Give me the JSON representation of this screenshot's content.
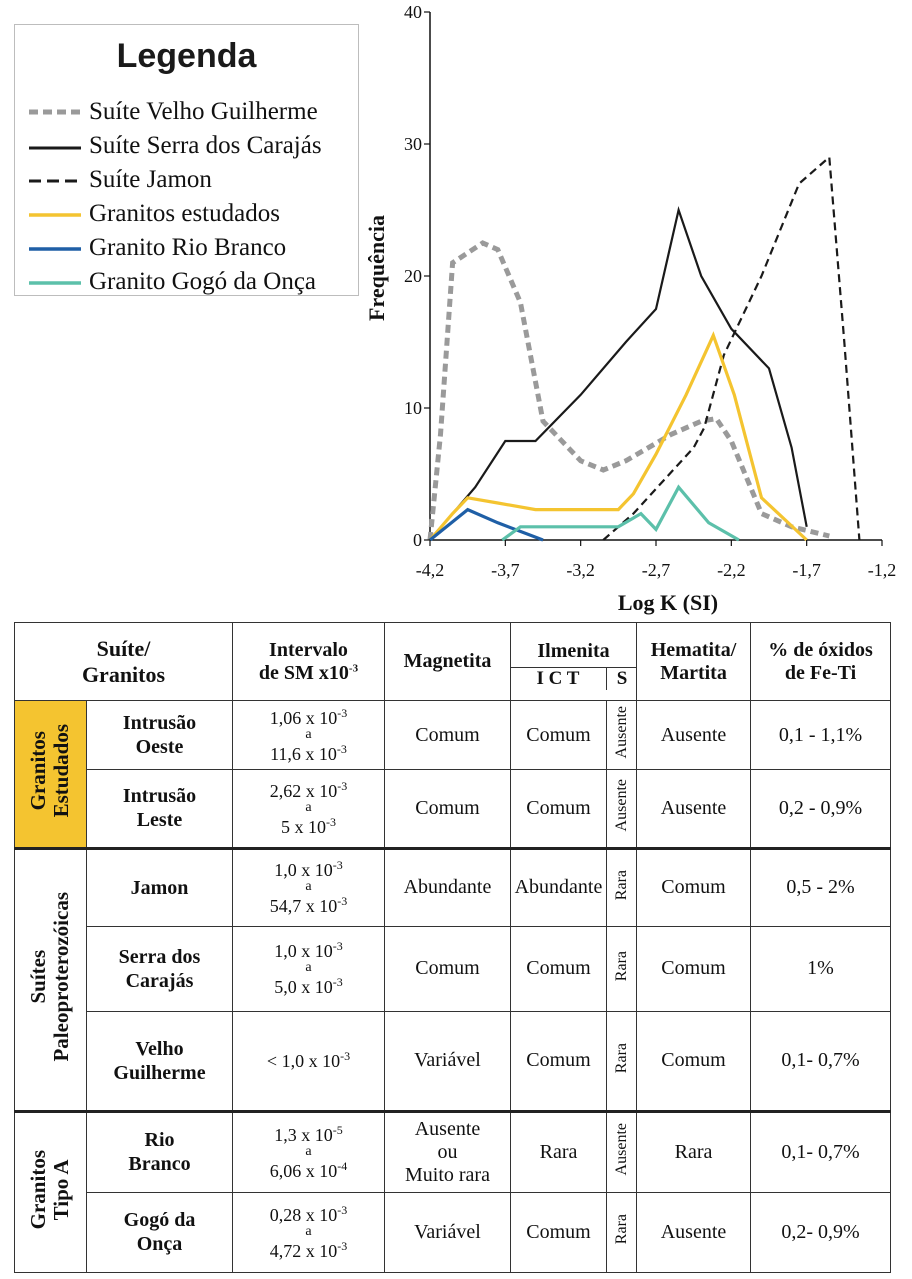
{
  "colors": {
    "velho_guilherme": "#9a9a9a",
    "serra_carajas": "#1a1a1a",
    "jamon": "#1a1a1a",
    "granitos_estudados": "#f4c430",
    "rio_branco": "#1f5fa6",
    "gogo_onca": "#5cc0aa",
    "estudados_header_bg": "#f4c430"
  },
  "legend": {
    "title": "Legenda",
    "items": [
      {
        "label": "Suíte Velho Guilherme",
        "style": "dotted-gray"
      },
      {
        "label": "Suíte Serra dos Carajás",
        "style": "solid-black"
      },
      {
        "label": "Suíte Jamon",
        "style": "dashed-black"
      },
      {
        "label": "Granitos estudados",
        "style": "solid-yellow"
      },
      {
        "label": "Granito Rio Branco",
        "style": "solid-blue"
      },
      {
        "label": "Granito Gogó da Onça",
        "style": "solid-teal"
      }
    ]
  },
  "chart_data": {
    "type": "line",
    "title": "",
    "xlabel": "Log K (SI)",
    "ylabel": "Frequência",
    "xlim": [
      -4.2,
      -1.2
    ],
    "ylim": [
      0,
      40
    ],
    "xticks": [
      "-4,2",
      "-3,7",
      "-3,2",
      "-2,7",
      "-2,2",
      "-1,7",
      "-1,2"
    ],
    "yticks": [
      "0",
      "10",
      "20",
      "30",
      "40"
    ],
    "grid": false,
    "series": [
      {
        "name": "Suíte Velho Guilherme",
        "style": "dotted-gray",
        "x": [
          -4.2,
          -4.13,
          -4.05,
          -3.85,
          -3.75,
          -3.6,
          -3.45,
          -3.2,
          -3.05,
          -2.9,
          -2.6,
          -2.4,
          -2.3,
          -2.2,
          -2.0,
          -1.8,
          -1.55
        ],
        "y": [
          0,
          8,
          21,
          22.5,
          22,
          18,
          9,
          6,
          5.3,
          6,
          8,
          9,
          9.2,
          7.5,
          2,
          1,
          0.3
        ]
      },
      {
        "name": "Suíte Serra dos Carajás",
        "style": "solid-black",
        "x": [
          -4.2,
          -3.9,
          -3.7,
          -3.5,
          -3.2,
          -2.9,
          -2.7,
          -2.55,
          -2.4,
          -2.2,
          -1.95,
          -1.8,
          -1.7
        ],
        "y": [
          0,
          4,
          7.5,
          7.5,
          11,
          15,
          17.5,
          25,
          20,
          16,
          13,
          7,
          1
        ]
      },
      {
        "name": "Suíte Jamon",
        "style": "dashed-black",
        "x": [
          -3.05,
          -2.85,
          -2.65,
          -2.45,
          -2.38,
          -2.25,
          -2.0,
          -1.75,
          -1.55,
          -1.45,
          -1.35
        ],
        "y": [
          0,
          2,
          4.5,
          7,
          8.5,
          14,
          20,
          27,
          29,
          15,
          0
        ]
      },
      {
        "name": "Granitos estudados",
        "style": "solid-yellow",
        "x": [
          -4.2,
          -4.05,
          -3.95,
          -3.75,
          -3.5,
          -3.2,
          -2.95,
          -2.85,
          -2.7,
          -2.5,
          -2.32,
          -2.18,
          -2.0,
          -1.7
        ],
        "y": [
          0,
          2,
          3.2,
          2.8,
          2.3,
          2.3,
          2.3,
          3.5,
          6.5,
          11,
          15.5,
          11,
          3.2,
          0
        ]
      },
      {
        "name": "Granito Rio Branco",
        "style": "solid-blue",
        "x": [
          -4.2,
          -3.95,
          -3.75,
          -3.45
        ],
        "y": [
          0,
          2.3,
          1.3,
          0
        ]
      },
      {
        "name": "Granito Gogó da Onça",
        "style": "solid-teal",
        "x": [
          -3.72,
          -3.6,
          -3.2,
          -2.95,
          -2.8,
          -2.7,
          -2.55,
          -2.35,
          -2.15
        ],
        "y": [
          0,
          1,
          1,
          1,
          2,
          0.8,
          4,
          1.3,
          0
        ]
      }
    ]
  },
  "table": {
    "headers": {
      "suite": "Suíte/\nGranitos",
      "intervalo": "Intervalo\nde SM x10-3",
      "magnetita": "Magnetita",
      "ilmenita": "Ilmenita",
      "ilmenita_sub_ict": "I   C   T",
      "ilmenita_sub_s": "S",
      "hematita": "Hematita/\nMartita",
      "oxidos": "% de óxidos\nde Fe-Ti"
    },
    "groups": [
      {
        "label": "Granitos\nEstudados",
        "rows": [
          {
            "name": "Intrusão\nOeste",
            "interval_from": "1,06 x 10-3",
            "interval_to": "11,6 x 10-3",
            "magnetita": "Comum",
            "ilmenita_ict": "Comum",
            "ilmenita_s": "Ausente",
            "hematita": "Ausente",
            "oxidos": "0,1 - 1,1%"
          },
          {
            "name": "Intrusão\nLeste",
            "interval_from": "2,62 x 10-3",
            "interval_to": "5 x 10-3",
            "magnetita": "Comum",
            "ilmenita_ict": "Comum",
            "ilmenita_s": "Ausente",
            "hematita": "Ausente",
            "oxidos": "0,2 - 0,9%"
          }
        ]
      },
      {
        "label": "Suítes\nPaleoproterozóicas",
        "rows": [
          {
            "name": "Jamon",
            "interval_from": "1,0 x 10-3",
            "interval_to": "54,7 x 10-3",
            "magnetita": "Abundante",
            "ilmenita_ict": "Abundante",
            "ilmenita_s": "Rara",
            "hematita": "Comum",
            "oxidos": "0,5 - 2%"
          },
          {
            "name": "Serra dos\nCarajás",
            "interval_from": "1,0 x 10-3",
            "interval_to": "5,0 x 10-3",
            "magnetita": "Comum",
            "ilmenita_ict": "Comum",
            "ilmenita_s": "Rara",
            "hematita": "Comum",
            "oxidos": "1%"
          },
          {
            "name": "Velho\nGuilherme",
            "interval_single": "< 1,0 x 10-3",
            "magnetita": "Variável",
            "ilmenita_ict": "Comum",
            "ilmenita_s": "Rara",
            "hematita": "Comum",
            "oxidos": "0,1- 0,7%"
          }
        ]
      },
      {
        "label": "Granitos\nTipo A",
        "rows": [
          {
            "name": "Rio\nBranco",
            "interval_from": "1,3 x 10-5",
            "interval_to": "6,06 x 10-4",
            "magnetita": "Ausente\nou\nMuito rara",
            "ilmenita_ict": "Rara",
            "ilmenita_s": "Ausente",
            "hematita": "Rara",
            "oxidos": "0,1- 0,7%"
          },
          {
            "name": "Gogó da\nOnça",
            "interval_from": "0,28 x 10-3",
            "interval_to": "4,72 x 10-3",
            "magnetita": "Variável",
            "ilmenita_ict": "Comum",
            "ilmenita_s": "Rara",
            "hematita": "Ausente",
            "oxidos": "0,2- 0,9%"
          }
        ]
      }
    ],
    "interval_connector": "a"
  }
}
